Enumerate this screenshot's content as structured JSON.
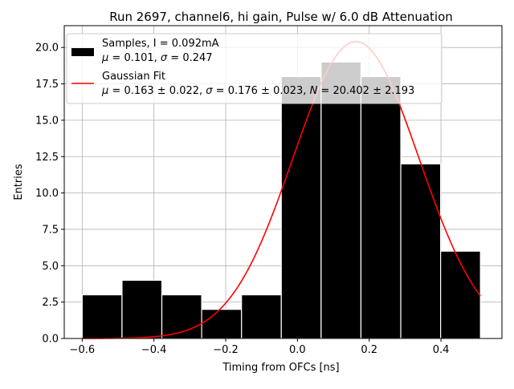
{
  "chart_data": {
    "type": "bar",
    "title": "Run 2697, channel6, hi gain, Pulse w/ 6.0 dB Attenuation",
    "xlabel": "Timing from OFCs [ns]",
    "ylabel": "Entries",
    "xlim": [
      -0.65,
      0.57
    ],
    "ylim": [
      0,
      21.5
    ],
    "grid": true,
    "legend_position": "top-left",
    "x_ticks": [
      -0.6,
      -0.4,
      -0.2,
      0.0,
      0.2,
      0.4
    ],
    "x_tick_labels": [
      "−0.6",
      "−0.4",
      "−0.2",
      "0.0",
      "0.2",
      "0.4"
    ],
    "y_ticks": [
      0,
      2.5,
      5,
      7.5,
      10,
      12.5,
      15,
      17.5,
      20
    ],
    "y_tick_labels": [
      "0.0",
      "2.5",
      "5.0",
      "7.5",
      "10.0",
      "12.5",
      "15.0",
      "17.5",
      "20.0"
    ],
    "histogram": {
      "name": "Samples",
      "color": "#000000",
      "edge_color": "#ffffff",
      "bin_edges": [
        -0.6,
        -0.489,
        -0.378,
        -0.267,
        -0.156,
        -0.045,
        0.066,
        0.177,
        0.288,
        0.399,
        0.51
      ],
      "counts": [
        3,
        4,
        3,
        2,
        3,
        18,
        19,
        18,
        12,
        6
      ]
    },
    "fit": {
      "name": "Gaussian Fit",
      "color": "#ff0000",
      "mu": 0.163,
      "sigma": 0.176,
      "N": 20.402,
      "x_range": [
        -0.6,
        0.51
      ]
    },
    "legend": [
      {
        "kind": "patch",
        "line1": "Samples, I = 0.092mA",
        "line2": "μ = 0.101, σ = 0.247"
      },
      {
        "kind": "line",
        "line1": "Gaussian Fit",
        "line2": "μ = 0.163 ± 0.022, σ = 0.176 ± 0.023, N = 20.402 ± 2.193"
      }
    ]
  }
}
